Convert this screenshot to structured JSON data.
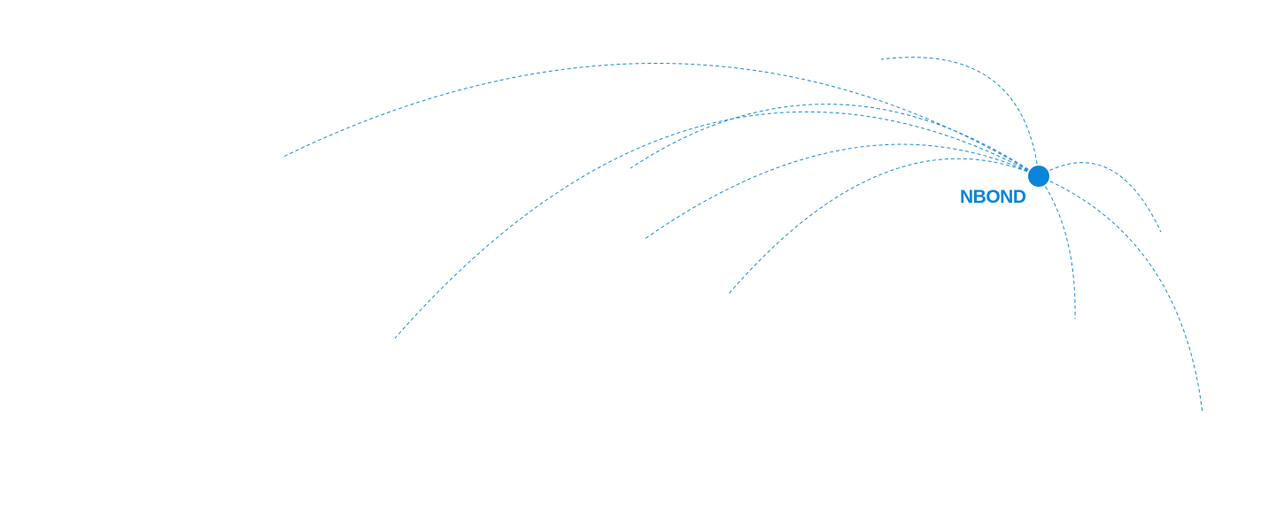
{
  "hub": {
    "label": "NBOND",
    "icon": "location-dot-icon"
  },
  "colors": {
    "accent": "#0a85d9",
    "line": "#1a8ad8"
  }
}
